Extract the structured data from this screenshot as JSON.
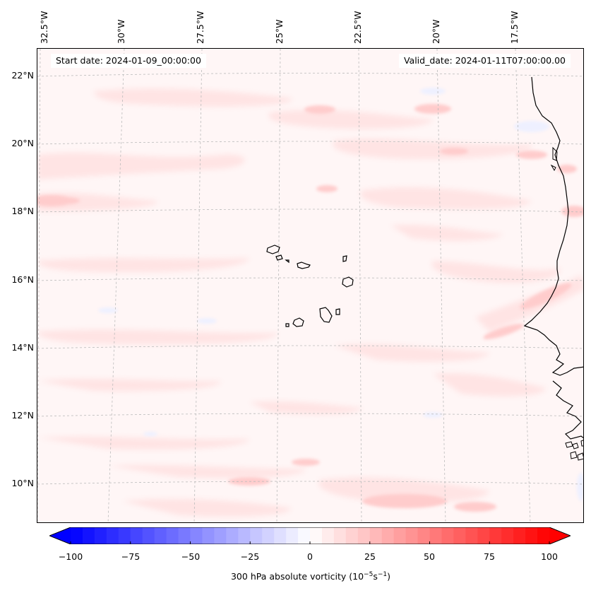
{
  "map": {
    "start_date": "Start date: 2024-01-09_00:00:00",
    "valid_date": "Valid_date: 2024-01-11T07:00:00.00",
    "lon_labels": [
      "32.5°W",
      "30°W",
      "27.5°W",
      "25°W",
      "22.5°W",
      "20°W",
      "17.5°W"
    ],
    "lat_labels": [
      "22°N",
      "20°N",
      "18°N",
      "16°N",
      "14°N",
      "12°N",
      "10°N"
    ],
    "gridlines": "dashed",
    "field_colors": {
      "negative": "#0000ff",
      "neutral": "#ffffff",
      "positive": "#ff0000"
    }
  },
  "colorbar": {
    "title_main": "300 hPa absolute vorticity (10",
    "title_sup1": "−5",
    "title_mid": "s",
    "title_sup2": "−1",
    "title_end": ")",
    "tick_labels": [
      "−100",
      "−75",
      "−50",
      "−25",
      "0",
      "25",
      "50",
      "75",
      "100"
    ],
    "range": [
      -100,
      100
    ],
    "extend": "both"
  }
}
